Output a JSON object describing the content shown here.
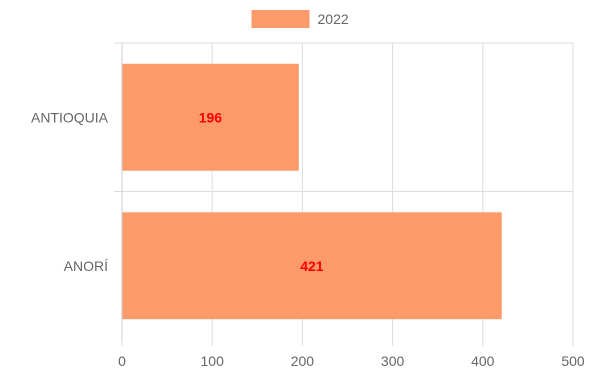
{
  "chart_data": {
    "type": "bar",
    "orientation": "horizontal",
    "categories": [
      "ANTIOQUIA",
      "ANORÍ"
    ],
    "series": [
      {
        "name": "2022",
        "values": [
          196,
          421
        ],
        "color": "#fc9a6a"
      }
    ],
    "data_labels": [
      "196",
      "421"
    ],
    "x_ticks": [
      "0",
      "100",
      "200",
      "300",
      "400",
      "500"
    ],
    "xlim": [
      0,
      500
    ],
    "grid": true,
    "legend_position": "top",
    "colors": {
      "bar": "#fc9a6a",
      "data_label": "#ff0000",
      "grid": "#dddddd",
      "axis_text": "#666666"
    }
  }
}
